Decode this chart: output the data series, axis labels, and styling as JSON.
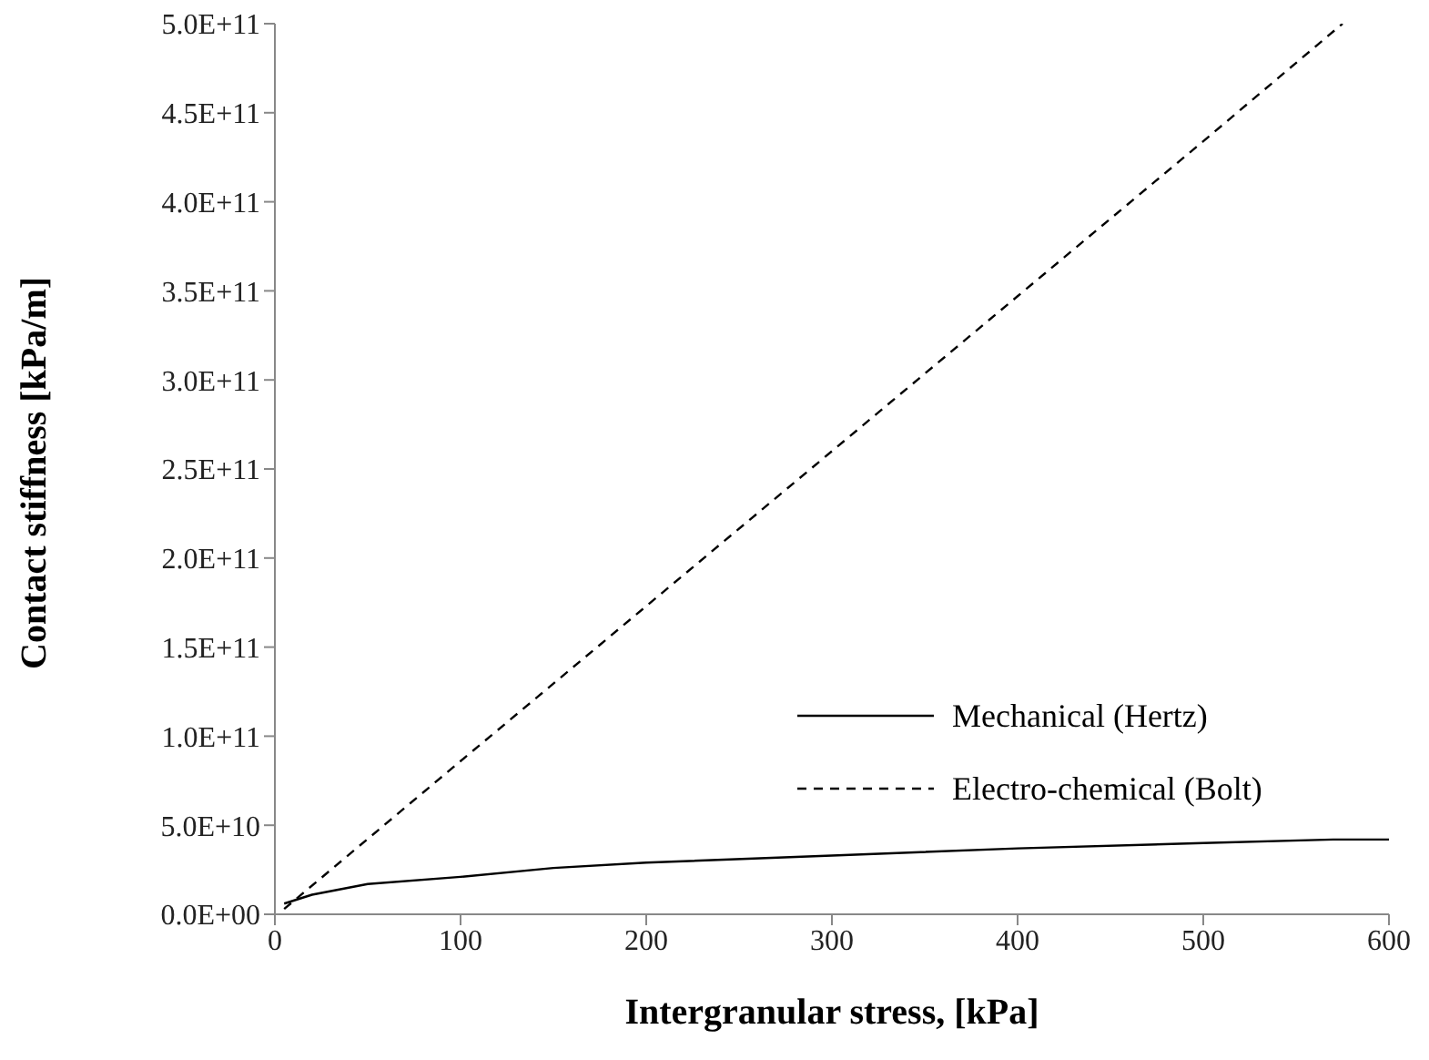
{
  "chart_data": {
    "type": "line",
    "xlabel": "Intergranular stress, [kPa]",
    "ylabel": "Contact stiffness [kPa/m]",
    "xlim": [
      0,
      600
    ],
    "xticks": [
      0,
      100,
      200,
      300,
      400,
      500,
      600
    ],
    "ylim": [
      0,
      500000000000
    ],
    "yticks": [
      {
        "value": 0,
        "label": "0.0E+00"
      },
      {
        "value": 50000000000,
        "label": "5.0E+10"
      },
      {
        "value": 100000000000,
        "label": "1.0E+11"
      },
      {
        "value": 150000000000,
        "label": "1.5E+11"
      },
      {
        "value": 200000000000,
        "label": "2.0E+11"
      },
      {
        "value": 250000000000,
        "label": "2.5E+11"
      },
      {
        "value": 300000000000,
        "label": "3.0E+11"
      },
      {
        "value": 350000000000,
        "label": "3.5E+11"
      },
      {
        "value": 400000000000,
        "label": "4.0E+11"
      },
      {
        "value": 450000000000,
        "label": "4.5E+11"
      },
      {
        "value": 500000000000,
        "label": "5.0E+11"
      }
    ],
    "legend": "bottom right",
    "marker": "none",
    "series": [
      {
        "name": "Mechanical (Hertz)",
        "color": "#000000",
        "line_style": "solid",
        "x": [
          5,
          20,
          50,
          100,
          150,
          200,
          300,
          400,
          500,
          570,
          600
        ],
        "values": [
          6000000000,
          11000000000,
          17000000000,
          21000000000,
          26000000000,
          29000000000,
          33000000000,
          37000000000,
          40000000000,
          42000000000,
          42000000000
        ]
      },
      {
        "name": "Electro-chemical (Bolt)",
        "color": "#000000",
        "line_style": "dashed",
        "x": [
          5,
          100,
          200,
          300,
          400,
          500,
          575
        ],
        "values": [
          3000000000,
          86000000000,
          173000000000,
          260000000000,
          347000000000,
          434000000000,
          500000000000
        ]
      }
    ]
  }
}
